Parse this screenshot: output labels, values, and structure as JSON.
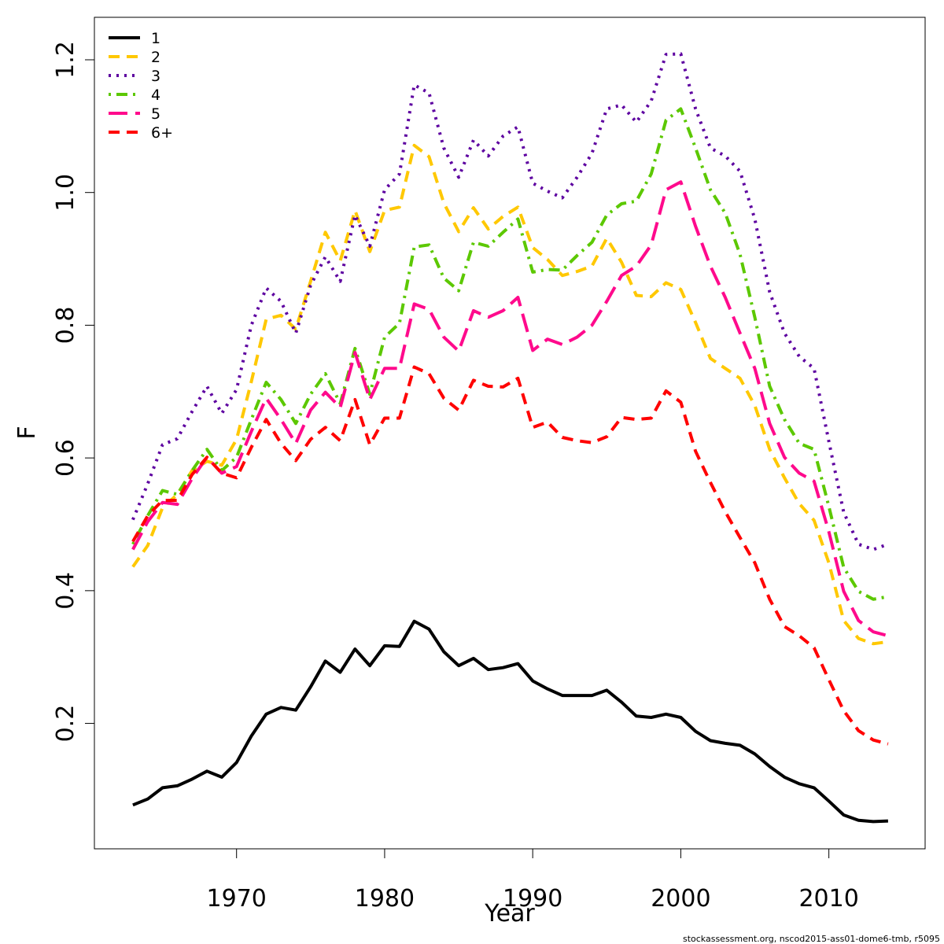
{
  "chart_data": {
    "type": "line",
    "title": "",
    "xlabel": "Year",
    "ylabel": "F",
    "xlim": [
      1960.4,
      2016.5
    ],
    "ylim": [
      0.011,
      1.264
    ],
    "xticks": [
      1970,
      1980,
      1990,
      2000,
      2010
    ],
    "yticks": [
      0.2,
      0.4,
      0.6,
      0.8,
      1.0,
      1.2
    ],
    "ytick_labels": [
      "0.2",
      "0.4",
      "0.6",
      "0.8",
      "1.0",
      "1.2"
    ],
    "grid": false,
    "legend_position": "top-left",
    "x": [
      1963,
      1964,
      1965,
      1966,
      1967,
      1968,
      1969,
      1970,
      1971,
      1972,
      1973,
      1974,
      1975,
      1976,
      1977,
      1978,
      1979,
      1980,
      1981,
      1982,
      1983,
      1984,
      1985,
      1986,
      1987,
      1988,
      1989,
      1990,
      1991,
      1992,
      1993,
      1994,
      1995,
      1996,
      1997,
      1998,
      1999,
      2000,
      2001,
      2002,
      2003,
      2004,
      2005,
      2006,
      2007,
      2008,
      2009,
      2010,
      2011,
      2012,
      2013,
      2014
    ],
    "series": [
      {
        "name": "1",
        "color": "#000000",
        "dash": "solid",
        "values": [
          0.077,
          0.086,
          0.103,
          0.106,
          0.116,
          0.128,
          0.119,
          0.141,
          0.181,
          0.214,
          0.224,
          0.22,
          0.255,
          0.294,
          0.277,
          0.312,
          0.287,
          0.317,
          0.316,
          0.354,
          0.342,
          0.308,
          0.287,
          0.298,
          0.281,
          0.284,
          0.29,
          0.264,
          0.252,
          0.242,
          0.242,
          0.242,
          0.25,
          0.232,
          0.211,
          0.209,
          0.214,
          0.209,
          0.188,
          0.174,
          0.17,
          0.167,
          0.154,
          0.135,
          0.119,
          0.109,
          0.103,
          0.083,
          0.062,
          0.054,
          0.052,
          0.053
        ]
      },
      {
        "name": "2",
        "color": "#FFC800",
        "dash": "dashed",
        "values": [
          0.436,
          0.468,
          0.525,
          0.545,
          0.581,
          0.595,
          0.589,
          0.628,
          0.715,
          0.809,
          0.815,
          0.794,
          0.866,
          0.94,
          0.897,
          0.973,
          0.911,
          0.973,
          0.978,
          1.071,
          1.054,
          0.984,
          0.941,
          0.977,
          0.945,
          0.964,
          0.978,
          0.917,
          0.899,
          0.875,
          0.881,
          0.889,
          0.931,
          0.895,
          0.845,
          0.843,
          0.864,
          0.854,
          0.804,
          0.75,
          0.735,
          0.72,
          0.679,
          0.613,
          0.57,
          0.531,
          0.506,
          0.442,
          0.355,
          0.328,
          0.32,
          0.323
        ]
      },
      {
        "name": "3",
        "color": "#5D00A0",
        "dash": "dotted",
        "values": [
          0.507,
          0.561,
          0.62,
          0.629,
          0.67,
          0.708,
          0.667,
          0.703,
          0.8,
          0.856,
          0.836,
          0.788,
          0.86,
          0.903,
          0.866,
          0.966,
          0.919,
          1.004,
          1.028,
          1.162,
          1.15,
          1.067,
          1.023,
          1.079,
          1.055,
          1.085,
          1.099,
          1.014,
          1.002,
          0.992,
          1.023,
          1.059,
          1.126,
          1.132,
          1.106,
          1.138,
          1.208,
          1.209,
          1.126,
          1.067,
          1.055,
          1.032,
          0.96,
          0.85,
          0.788,
          0.753,
          0.735,
          0.625,
          0.518,
          0.47,
          0.462,
          0.47
        ]
      },
      {
        "name": "4",
        "color": "#5CC800",
        "dash": "dotdash",
        "values": [
          0.47,
          0.513,
          0.551,
          0.545,
          0.581,
          0.613,
          0.581,
          0.601,
          0.658,
          0.714,
          0.688,
          0.652,
          0.696,
          0.727,
          0.682,
          0.765,
          0.696,
          0.782,
          0.803,
          0.918,
          0.921,
          0.871,
          0.852,
          0.925,
          0.919,
          0.94,
          0.96,
          0.88,
          0.884,
          0.883,
          0.905,
          0.925,
          0.966,
          0.983,
          0.987,
          1.028,
          1.109,
          1.126,
          1.067,
          1.004,
          0.969,
          0.907,
          0.812,
          0.708,
          0.658,
          0.622,
          0.613,
          0.527,
          0.435,
          0.399,
          0.387,
          0.391
        ]
      },
      {
        "name": "5",
        "color": "#FF0A8C",
        "dash": "longdash",
        "values": [
          0.462,
          0.504,
          0.533,
          0.53,
          0.569,
          0.601,
          0.577,
          0.587,
          0.64,
          0.69,
          0.658,
          0.622,
          0.672,
          0.699,
          0.676,
          0.759,
          0.688,
          0.735,
          0.735,
          0.832,
          0.824,
          0.782,
          0.761,
          0.822,
          0.812,
          0.822,
          0.842,
          0.762,
          0.779,
          0.771,
          0.782,
          0.8,
          0.836,
          0.875,
          0.889,
          0.921,
          1.004,
          1.016,
          0.949,
          0.889,
          0.842,
          0.788,
          0.735,
          0.652,
          0.601,
          0.577,
          0.565,
          0.489,
          0.399,
          0.355,
          0.338,
          0.332
        ]
      },
      {
        "name": "6+",
        "color": "#FF0000",
        "dash": "dashed",
        "values": [
          0.474,
          0.513,
          0.536,
          0.536,
          0.575,
          0.601,
          0.577,
          0.57,
          0.616,
          0.658,
          0.622,
          0.596,
          0.628,
          0.646,
          0.626,
          0.688,
          0.62,
          0.66,
          0.66,
          0.737,
          0.727,
          0.69,
          0.672,
          0.717,
          0.708,
          0.707,
          0.72,
          0.646,
          0.654,
          0.631,
          0.626,
          0.623,
          0.632,
          0.661,
          0.658,
          0.66,
          0.701,
          0.684,
          0.61,
          0.563,
          0.519,
          0.48,
          0.442,
          0.387,
          0.346,
          0.332,
          0.314,
          0.266,
          0.219,
          0.189,
          0.175,
          0.169
        ]
      }
    ]
  },
  "footer": "stockassessment.org, nscod2015-ass01-dome6-tmb, r5095"
}
